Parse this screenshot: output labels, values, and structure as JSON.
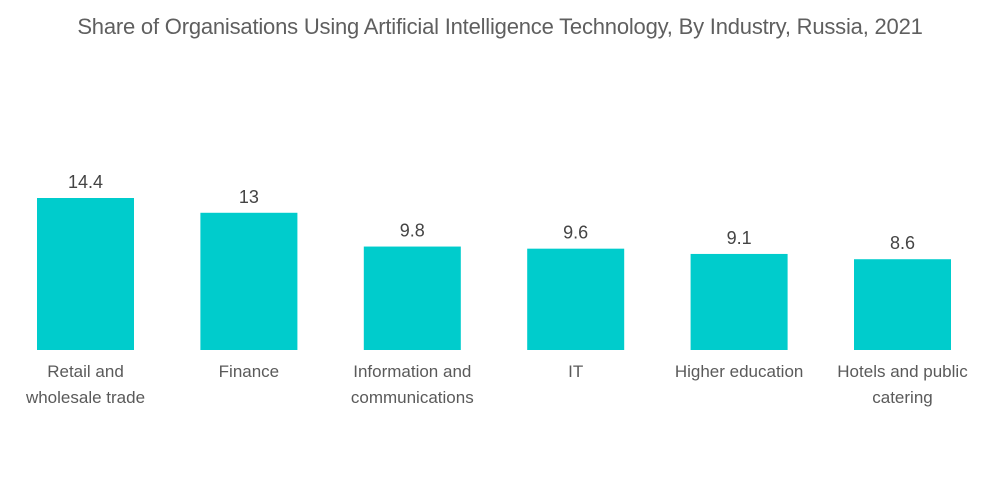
{
  "chart_data": {
    "type": "bar",
    "title": "Share of Organisations Using Artificial Intelligence Technology, By Industry, Russia, 2021",
    "xlabel": "",
    "ylabel": "",
    "categories": [
      [
        "Retail and",
        "wholesale trade"
      ],
      [
        "Finance"
      ],
      [
        "Information and",
        "communications"
      ],
      [
        "IT"
      ],
      [
        "Higher education"
      ],
      [
        "Hotels and public",
        "catering"
      ]
    ],
    "values": [
      14.4,
      13,
      9.8,
      9.6,
      9.1,
      8.6
    ],
    "value_labels": [
      "14.4",
      "13",
      "9.8",
      "9.6",
      "9.1",
      "8.6"
    ],
    "ylim": [
      0,
      14.4
    ],
    "grid": false,
    "legend": "none",
    "bar_color": "#00CCCC"
  }
}
